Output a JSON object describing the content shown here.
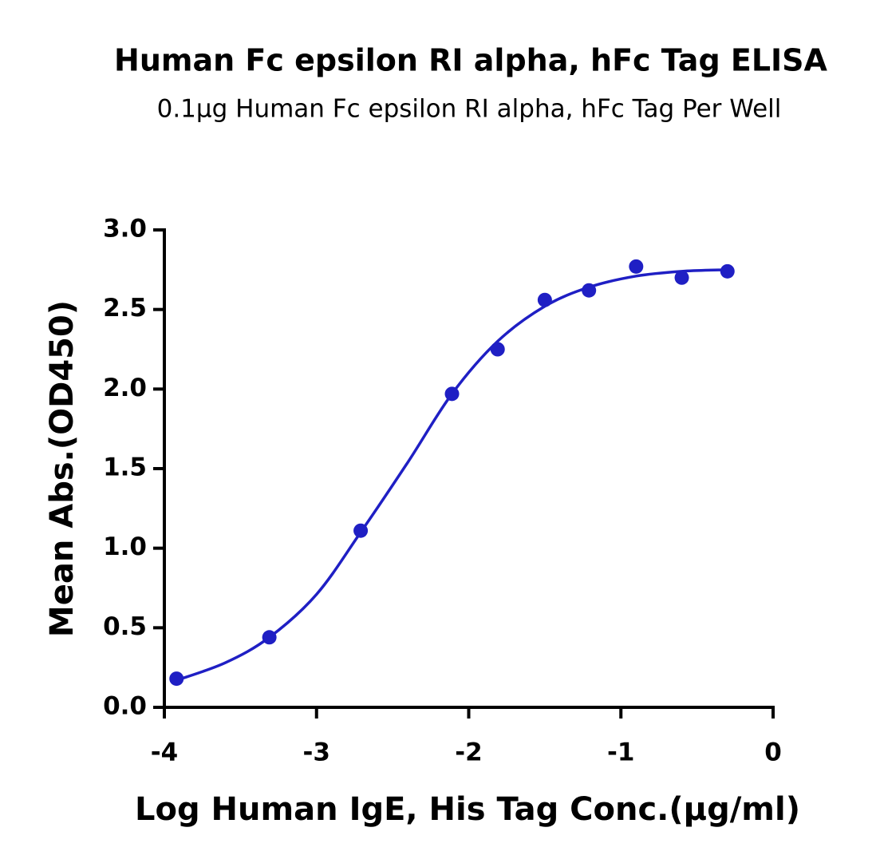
{
  "chart_data": {
    "type": "scatter",
    "title": "Human Fc epsilon RI alpha, hFc Tag ELISA",
    "subtitle": "0.1μg Human Fc epsilon RI alpha, hFc Tag Per Well",
    "x_label": "Log Human IgE, His Tag Conc.(μg/ml)",
    "y_label": "Mean Abs.(OD450)",
    "color": "#1f1fc4",
    "x": [
      -3.92,
      -3.31,
      -2.71,
      -2.11,
      -1.81,
      -1.5,
      -1.21,
      -0.9,
      -0.6,
      -0.3
    ],
    "values": [
      0.18,
      0.44,
      1.11,
      1.97,
      2.25,
      2.56,
      2.62,
      2.77,
      2.7,
      2.74
    ],
    "fit": {
      "x": [
        -3.92,
        -3.6,
        -3.31,
        -3.0,
        -2.71,
        -2.4,
        -2.11,
        -1.81,
        -1.5,
        -1.21,
        -0.9,
        -0.6,
        -0.3
      ],
      "values": [
        0.17,
        0.28,
        0.44,
        0.71,
        1.1,
        1.54,
        1.97,
        2.3,
        2.52,
        2.64,
        2.71,
        2.74,
        2.75
      ]
    },
    "xlim": [
      -4,
      0
    ],
    "xticks": [
      -4,
      -3,
      -2,
      -1,
      0
    ],
    "ylim": [
      0,
      3
    ],
    "yticks": [
      {
        "value": 0,
        "label": "0.0"
      },
      {
        "value": 0.5,
        "label": "0.5"
      },
      {
        "value": 1,
        "label": "1.0"
      },
      {
        "value": 1.5,
        "label": "1.5"
      },
      {
        "value": 2,
        "label": "2.0"
      },
      {
        "value": 2.5,
        "label": "2.5"
      },
      {
        "value": 3,
        "label": "3.0"
      }
    ],
    "grid": false
  }
}
